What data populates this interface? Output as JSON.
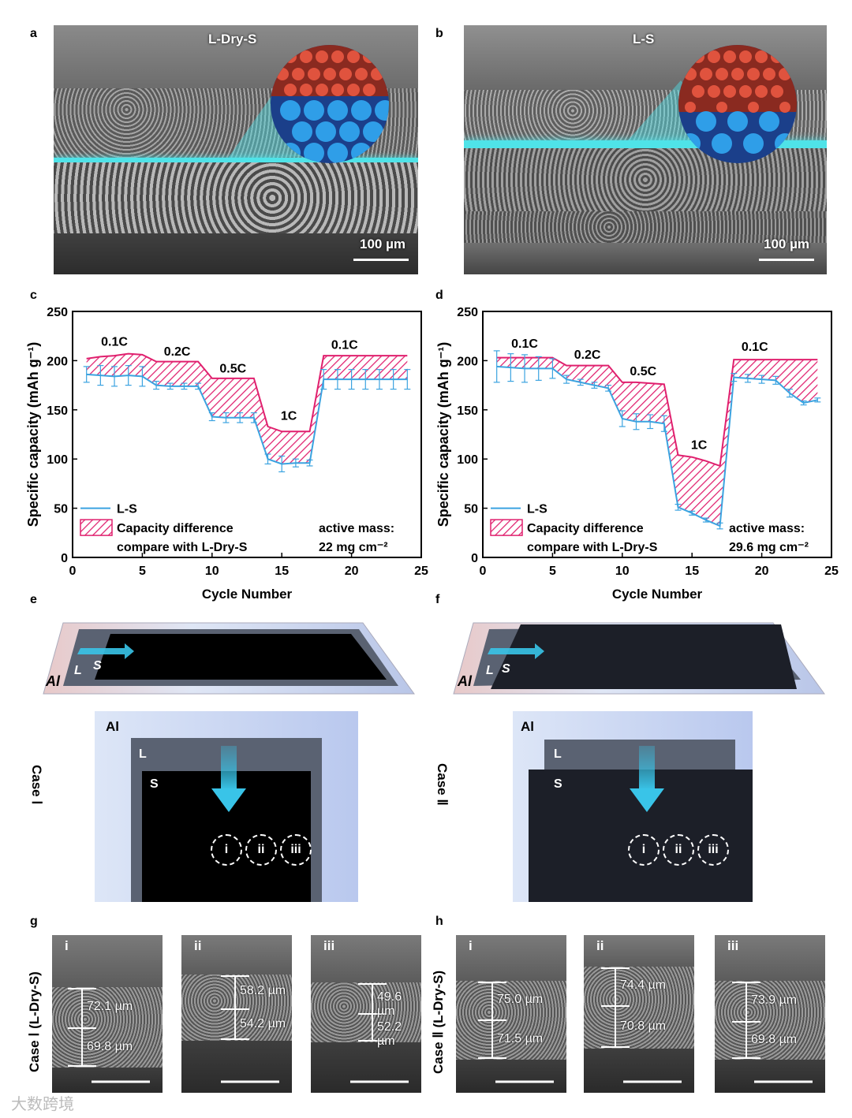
{
  "panels": {
    "a": {
      "label": "a",
      "title": "L-Dry-S",
      "scale": "100 µm"
    },
    "b": {
      "label": "b",
      "title": "L-S",
      "scale": "100 µm"
    },
    "c": {
      "label": "c"
    },
    "d": {
      "label": "d"
    },
    "e": {
      "label": "e",
      "case": "Case Ⅰ",
      "al": "Al",
      "l": "L",
      "s": "S"
    },
    "f": {
      "label": "f",
      "case": "Case Ⅱ",
      "al": "Al",
      "l": "L",
      "s": "S"
    },
    "g": {
      "label": "g",
      "case": "Case Ⅰ (L-Dry-S)",
      "thumbs": [
        {
          "roman": "i",
          "top": "72.1 µm",
          "bottom": "69.8 µm"
        },
        {
          "roman": "ii",
          "top": "58.2 µm",
          "bottom": "54.2 µm"
        },
        {
          "roman": "iii",
          "top": "49.6 µm",
          "bottom": "52.2 µm"
        }
      ]
    },
    "h": {
      "label": "h",
      "case": "Case Ⅱ (L-Dry-S)",
      "thumbs": [
        {
          "roman": "i",
          "top": "75.0 µm",
          "bottom": "71.5 µm"
        },
        {
          "roman": "ii",
          "top": "74.4 µm",
          "bottom": "70.8 µm"
        },
        {
          "roman": "iii",
          "top": "73.9 µm",
          "bottom": "69.8 µm"
        }
      ]
    }
  },
  "circle_labels": [
    "i",
    "ii",
    "iii"
  ],
  "watermark": "大数跨境",
  "chart_data": [
    {
      "type": "line",
      "panel": "c",
      "xlabel": "Cycle Number",
      "ylabel": "Specific capacity (mAh g⁻¹)",
      "xlim": [
        0,
        25
      ],
      "ylim": [
        0,
        250
      ],
      "xticks": [
        0,
        5,
        10,
        15,
        20,
        25
      ],
      "yticks": [
        0,
        50,
        100,
        150,
        200,
        250
      ],
      "series": [
        {
          "name": "L-S",
          "color": "#3ba3e0",
          "x": [
            1,
            2,
            3,
            4,
            5,
            6,
            7,
            8,
            9,
            10,
            11,
            12,
            13,
            14,
            15,
            16,
            17,
            18,
            19,
            20,
            21,
            22,
            23,
            24
          ],
          "y": [
            186,
            185,
            184,
            185,
            184,
            175,
            174,
            174,
            174,
            143,
            142,
            142,
            142,
            100,
            95,
            96,
            96,
            181,
            181,
            181,
            181,
            181,
            181,
            181
          ],
          "err": [
            8,
            10,
            10,
            10,
            10,
            4,
            3,
            3,
            3,
            4,
            5,
            5,
            5,
            5,
            8,
            4,
            3,
            10,
            10,
            10,
            10,
            10,
            10,
            10
          ]
        },
        {
          "name": "Capacity difference compare with L-Dry-S",
          "color": "#e0206e",
          "x": [
            1,
            2,
            3,
            4,
            5,
            6,
            7,
            8,
            9,
            10,
            11,
            12,
            13,
            14,
            15,
            16,
            17,
            18,
            19,
            20,
            21,
            22,
            23,
            24
          ],
          "y": [
            202,
            204,
            205,
            207,
            206,
            199,
            199,
            199,
            199,
            182,
            182,
            182,
            182,
            133,
            128,
            128,
            128,
            205,
            205,
            205,
            205,
            205,
            205,
            205
          ]
        }
      ],
      "rate_labels": [
        {
          "text": "0.1C",
          "x": 3,
          "y": 215
        },
        {
          "text": "0.2C",
          "x": 7.5,
          "y": 205
        },
        {
          "text": "0.5C",
          "x": 11.5,
          "y": 188
        },
        {
          "text": "1C",
          "x": 15.5,
          "y": 140
        },
        {
          "text": "0.1C",
          "x": 19.5,
          "y": 212
        }
      ],
      "legend": {
        "position": "bottom-left",
        "l_s": "L-S",
        "diff_line1": "Capacity difference",
        "diff_line2": "compare with L-Dry-S"
      },
      "note": {
        "line1": "active mass:",
        "line2": "22 mg cm⁻²"
      }
    },
    {
      "type": "line",
      "panel": "d",
      "xlabel": "Cycle Number",
      "ylabel": "Specific capacity (mAh g⁻¹)",
      "xlim": [
        0,
        25
      ],
      "ylim": [
        0,
        250
      ],
      "xticks": [
        0,
        5,
        10,
        15,
        20,
        25
      ],
      "yticks": [
        0,
        50,
        100,
        150,
        200,
        250
      ],
      "series": [
        {
          "name": "L-S",
          "color": "#3ba3e0",
          "x": [
            1,
            2,
            3,
            4,
            5,
            6,
            7,
            8,
            9,
            10,
            11,
            12,
            13,
            14,
            15,
            16,
            17,
            18,
            19,
            20,
            21,
            22,
            23,
            24
          ],
          "y": [
            194,
            193,
            192,
            192,
            192,
            181,
            178,
            175,
            172,
            141,
            138,
            138,
            136,
            51,
            45,
            38,
            32,
            183,
            182,
            181,
            180,
            167,
            157,
            160
          ],
          "err": [
            16,
            14,
            14,
            12,
            10,
            4,
            3,
            3,
            3,
            8,
            8,
            7,
            8,
            3,
            2,
            2,
            3,
            4,
            4,
            4,
            4,
            4,
            2,
            2
          ]
        },
        {
          "name": "Capacity difference compare with L-Dry-S",
          "color": "#e0206e",
          "x": [
            1,
            2,
            3,
            4,
            5,
            6,
            7,
            8,
            9,
            10,
            11,
            12,
            13,
            14,
            15,
            16,
            17,
            18,
            19,
            20,
            21,
            22,
            23,
            24
          ],
          "y": [
            203,
            203,
            203,
            203,
            203,
            195,
            195,
            195,
            195,
            178,
            178,
            177,
            176,
            104,
            102,
            98,
            93,
            201,
            201,
            201,
            201,
            201,
            201,
            201
          ]
        }
      ],
      "rate_labels": [
        {
          "text": "0.1C",
          "x": 3,
          "y": 213
        },
        {
          "text": "0.2C",
          "x": 7.5,
          "y": 202
        },
        {
          "text": "0.5C",
          "x": 11.5,
          "y": 185
        },
        {
          "text": "1C",
          "x": 15.5,
          "y": 110
        },
        {
          "text": "0.1C",
          "x": 19.5,
          "y": 210
        }
      ],
      "legend": {
        "position": "bottom-left",
        "l_s": "L-S",
        "diff_line1": "Capacity difference",
        "diff_line2": "compare with L-Dry-S"
      },
      "note": {
        "line1": "active mass:",
        "line2": "29.6 mg cm⁻²"
      }
    }
  ]
}
